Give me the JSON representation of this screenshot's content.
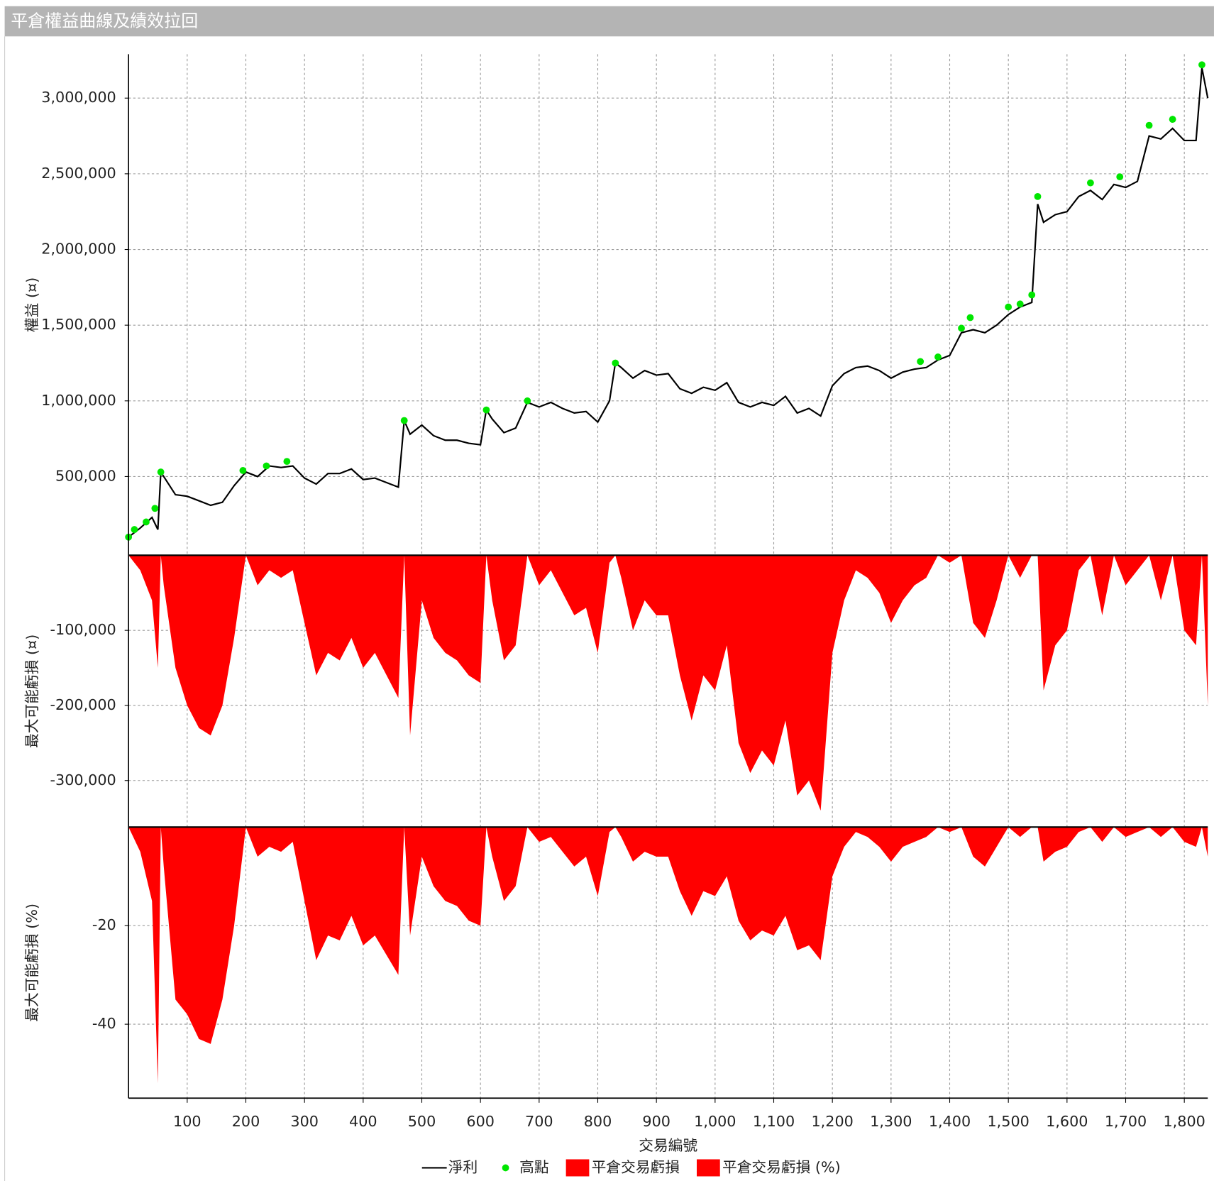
{
  "window_title": "平倉權益曲線及績效拉回",
  "chart_data": [
    {
      "type": "line",
      "ylabel": "權益 (¤)",
      "ylim": [
        -20000,
        3290000
      ],
      "yticks": [
        {
          "value": 500000,
          "label": "500,000"
        },
        {
          "value": 1000000,
          "label": "1,000,000"
        },
        {
          "value": 1500000,
          "label": "1,500,000"
        },
        {
          "value": 2000000,
          "label": "2,000,000"
        },
        {
          "value": 2500000,
          "label": "2,500,000"
        },
        {
          "value": 3000000,
          "label": "3,000,000"
        }
      ],
      "grid": true,
      "series": [
        {
          "name": "淨利",
          "type": "line",
          "color": "#000000",
          "x": [
            0,
            20,
            40,
            50,
            55,
            60,
            80,
            100,
            120,
            140,
            160,
            180,
            200,
            220,
            240,
            260,
            280,
            300,
            320,
            340,
            360,
            380,
            400,
            420,
            440,
            460,
            470,
            480,
            500,
            520,
            540,
            560,
            580,
            600,
            610,
            620,
            640,
            660,
            680,
            700,
            720,
            740,
            760,
            780,
            800,
            820,
            830,
            840,
            860,
            880,
            900,
            920,
            940,
            960,
            980,
            1000,
            1020,
            1040,
            1060,
            1080,
            1100,
            1120,
            1140,
            1160,
            1180,
            1200,
            1220,
            1240,
            1260,
            1280,
            1300,
            1320,
            1340,
            1360,
            1380,
            1400,
            1420,
            1440,
            1460,
            1480,
            1500,
            1520,
            1540,
            1550,
            1560,
            1580,
            1600,
            1620,
            1640,
            1660,
            1680,
            1700,
            1720,
            1740,
            1760,
            1780,
            1800,
            1820,
            1830,
            1840
          ],
          "values": [
            100000,
            160000,
            230000,
            150000,
            530000,
            500000,
            380000,
            370000,
            340000,
            310000,
            330000,
            440000,
            530000,
            500000,
            570000,
            560000,
            570000,
            490000,
            450000,
            520000,
            520000,
            550000,
            480000,
            490000,
            460000,
            430000,
            870000,
            780000,
            840000,
            770000,
            740000,
            740000,
            720000,
            710000,
            940000,
            880000,
            790000,
            820000,
            990000,
            960000,
            990000,
            950000,
            920000,
            930000,
            860000,
            1000000,
            1250000,
            1220000,
            1150000,
            1200000,
            1170000,
            1180000,
            1080000,
            1050000,
            1090000,
            1070000,
            1120000,
            990000,
            960000,
            990000,
            970000,
            1030000,
            920000,
            950000,
            900000,
            1100000,
            1180000,
            1220000,
            1230000,
            1200000,
            1150000,
            1190000,
            1210000,
            1220000,
            1270000,
            1300000,
            1450000,
            1470000,
            1450000,
            1500000,
            1570000,
            1620000,
            1650000,
            2300000,
            2180000,
            2230000,
            2250000,
            2350000,
            2390000,
            2330000,
            2430000,
            2410000,
            2450000,
            2750000,
            2730000,
            2800000,
            2720000,
            2720000,
            3200000,
            3000000
          ]
        },
        {
          "name": "高點",
          "type": "scatter",
          "color": "#00e600",
          "x": [
            0,
            10,
            30,
            45,
            55,
            195,
            235,
            270,
            470,
            610,
            680,
            830,
            1350,
            1380,
            1420,
            1435,
            1500,
            1520,
            1540,
            1550,
            1640,
            1690,
            1740,
            1780,
            1830
          ],
          "values": [
            100000,
            150000,
            200000,
            290000,
            530000,
            540000,
            570000,
            600000,
            870000,
            940000,
            1000000,
            1250000,
            1260000,
            1290000,
            1480000,
            1550000,
            1620000,
            1640000,
            1700000,
            2350000,
            2440000,
            2480000,
            2820000,
            2860000,
            3220000
          ]
        }
      ]
    },
    {
      "type": "area",
      "ylabel": "最大可能虧損 (¤)",
      "ylim": [
        -362000,
        0
      ],
      "yticks": [
        {
          "value": -300000,
          "label": "-300,000"
        },
        {
          "value": -200000,
          "label": "-200,000"
        },
        {
          "value": -100000,
          "label": "-100,000"
        }
      ],
      "grid": true,
      "series": [
        {
          "name": "平倉交易虧損",
          "color": "#ff0000",
          "x": [
            0,
            20,
            40,
            50,
            55,
            60,
            80,
            100,
            120,
            140,
            160,
            180,
            200,
            220,
            240,
            260,
            280,
            300,
            320,
            340,
            360,
            380,
            400,
            420,
            440,
            460,
            470,
            480,
            500,
            520,
            540,
            560,
            580,
            600,
            610,
            620,
            640,
            660,
            680,
            700,
            720,
            740,
            760,
            780,
            800,
            820,
            830,
            840,
            860,
            880,
            900,
            920,
            940,
            960,
            980,
            1000,
            1020,
            1040,
            1060,
            1080,
            1100,
            1120,
            1140,
            1160,
            1180,
            1200,
            1220,
            1240,
            1260,
            1280,
            1300,
            1320,
            1340,
            1360,
            1380,
            1400,
            1420,
            1440,
            1460,
            1480,
            1500,
            1520,
            1540,
            1550,
            1560,
            1580,
            1600,
            1620,
            1640,
            1660,
            1680,
            1700,
            1720,
            1740,
            1760,
            1780,
            1800,
            1820,
            1830,
            1840
          ],
          "values": [
            0,
            -20000,
            -60000,
            -150000,
            0,
            -40000,
            -150000,
            -200000,
            -230000,
            -240000,
            -200000,
            -110000,
            0,
            -40000,
            -20000,
            -30000,
            -20000,
            -90000,
            -160000,
            -130000,
            -140000,
            -110000,
            -150000,
            -130000,
            -160000,
            -190000,
            0,
            -240000,
            -60000,
            -110000,
            -130000,
            -140000,
            -160000,
            -170000,
            0,
            -60000,
            -140000,
            -120000,
            0,
            -40000,
            -20000,
            -50000,
            -80000,
            -70000,
            -130000,
            -10000,
            0,
            -30000,
            -100000,
            -60000,
            -80000,
            -80000,
            -160000,
            -220000,
            -160000,
            -180000,
            -120000,
            -250000,
            -290000,
            -260000,
            -280000,
            -220000,
            -320000,
            -300000,
            -340000,
            -130000,
            -60000,
            -20000,
            -30000,
            -50000,
            -90000,
            -60000,
            -40000,
            -30000,
            0,
            -10000,
            0,
            -90000,
            -110000,
            -60000,
            0,
            -30000,
            0,
            0,
            -180000,
            -120000,
            -100000,
            -20000,
            0,
            -80000,
            0,
            -40000,
            -20000,
            0,
            -60000,
            0,
            -100000,
            -120000,
            0,
            -200000
          ]
        }
      ]
    },
    {
      "type": "area",
      "ylabel": "最大可能虧損 (%)",
      "xlabel": "交易編號",
      "ylim": [
        -55,
        0
      ],
      "yticks": [
        -40,
        -20
      ],
      "xlim": [
        0,
        1840
      ],
      "xticks": [
        100,
        200,
        300,
        400,
        500,
        600,
        700,
        800,
        900,
        {
          "value": 1000,
          "label": "1,000"
        },
        {
          "value": 1100,
          "label": "1,100"
        },
        {
          "value": 1200,
          "label": "1,200"
        },
        {
          "value": 1300,
          "label": "1,300"
        },
        {
          "value": 1400,
          "label": "1,400"
        },
        {
          "value": 1500,
          "label": "1,500"
        },
        {
          "value": 1600,
          "label": "1,600"
        },
        {
          "value": 1700,
          "label": "1,700"
        },
        {
          "value": 1800,
          "label": "1,800"
        }
      ],
      "grid": true,
      "series": [
        {
          "name": "平倉交易虧損 (%)",
          "color": "#ff0000",
          "x": [
            0,
            20,
            40,
            50,
            55,
            60,
            80,
            100,
            120,
            140,
            160,
            180,
            200,
            220,
            240,
            260,
            280,
            300,
            320,
            340,
            360,
            380,
            400,
            420,
            440,
            460,
            470,
            480,
            500,
            520,
            540,
            560,
            580,
            600,
            610,
            620,
            640,
            660,
            680,
            700,
            720,
            740,
            760,
            780,
            800,
            820,
            830,
            840,
            860,
            880,
            900,
            920,
            940,
            960,
            980,
            1000,
            1020,
            1040,
            1060,
            1080,
            1100,
            1120,
            1140,
            1160,
            1180,
            1200,
            1220,
            1240,
            1260,
            1280,
            1300,
            1320,
            1340,
            1360,
            1380,
            1400,
            1420,
            1440,
            1460,
            1480,
            1500,
            1520,
            1540,
            1550,
            1560,
            1580,
            1600,
            1620,
            1640,
            1660,
            1680,
            1700,
            1720,
            1740,
            1760,
            1780,
            1800,
            1820,
            1830,
            1840
          ],
          "values": [
            0,
            -5,
            -15,
            -52,
            0,
            -8,
            -35,
            -38,
            -43,
            -44,
            -35,
            -20,
            0,
            -6,
            -4,
            -5,
            -3,
            -15,
            -27,
            -22,
            -23,
            -18,
            -24,
            -22,
            -26,
            -30,
            0,
            -22,
            -6,
            -12,
            -15,
            -16,
            -19,
            -20,
            0,
            -6,
            -15,
            -12,
            0,
            -3,
            -2,
            -5,
            -8,
            -6,
            -14,
            -1,
            0,
            -2,
            -7,
            -5,
            -6,
            -6,
            -13,
            -18,
            -13,
            -14,
            -10,
            -19,
            -23,
            -21,
            -22,
            -18,
            -25,
            -24,
            -27,
            -10,
            -4,
            -1,
            -2,
            -4,
            -7,
            -4,
            -3,
            -2,
            0,
            -1,
            0,
            -6,
            -8,
            -4,
            0,
            -2,
            0,
            0,
            -7,
            -5,
            -4,
            -1,
            0,
            -3,
            0,
            -2,
            -1,
            0,
            -2,
            0,
            -3,
            -4,
            0,
            -6
          ]
        }
      ]
    }
  ]
}
